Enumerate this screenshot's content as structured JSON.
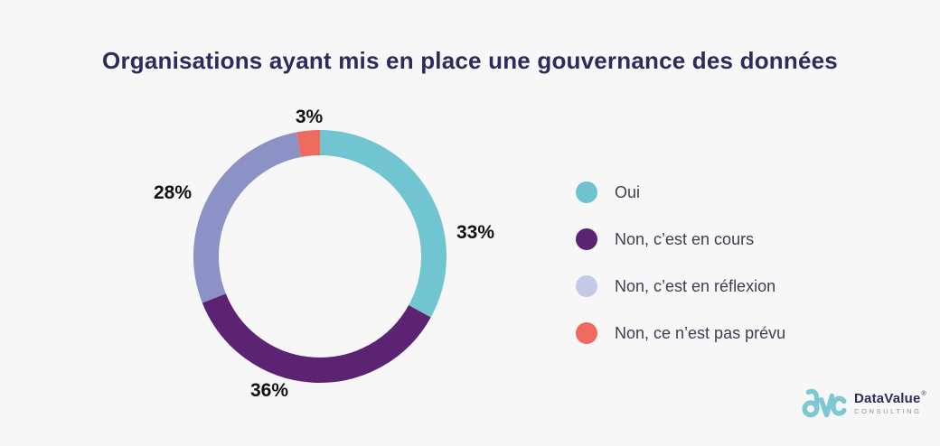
{
  "title": "Organisations ayant mis en place une gouvernance des données",
  "background_color": "#F7F7F8",
  "title_color": "#2B2C5E",
  "chart_data": {
    "type": "pie",
    "subtype": "donut",
    "title": "Organisations ayant mis en place une gouvernance des données",
    "start_angle_deg": 0,
    "direction": "clockwise",
    "legend_position": "right",
    "segments": [
      {
        "label": "Oui",
        "value": 33,
        "pct_label": "33%",
        "color": "#71C5D0"
      },
      {
        "label": "Non, c’est en cours",
        "value": 36,
        "pct_label": "36%",
        "color": "#5B2372"
      },
      {
        "label": "Non, c’est en réflexion",
        "value": 28,
        "pct_label": "28%",
        "color": "#8D92C6"
      },
      {
        "label": "Non, ce n’est pas prévu",
        "value": 3,
        "pct_label": "3%",
        "color": "#ED6A5F"
      }
    ]
  },
  "legend": {
    "items": [
      {
        "label": "Oui",
        "color": "#6DC3CE"
      },
      {
        "label": "Non, c’est en cours",
        "color": "#5B2372"
      },
      {
        "label": "Non, c’est en réflexion",
        "color": "#C3CAE8"
      },
      {
        "label": "Non, ce n’est pas prévu",
        "color": "#ED6A5F"
      }
    ]
  },
  "logo": {
    "monogram": "dvc",
    "brand": "DataValue",
    "registered_mark": "®",
    "subtitle": "CONSULTING",
    "accent_color": "#7EC8D4"
  }
}
